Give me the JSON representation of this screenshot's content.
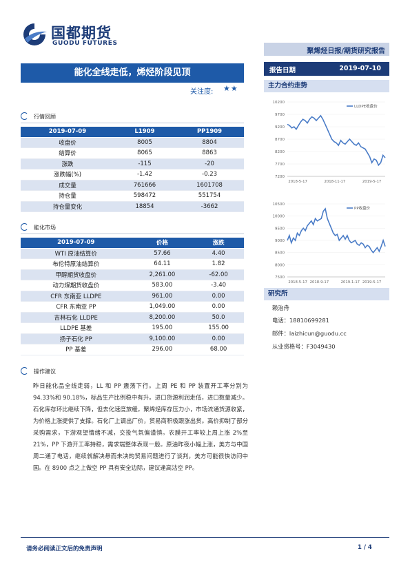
{
  "brand": {
    "name_cn": "国都期货",
    "name_en": "GUODU FUTURES"
  },
  "banner": "聚烯烃日报/期货研究报告",
  "headline": "能化全线走低，烯烃阶段见顶",
  "focus_label": "关注度:",
  "focus_stars": "★★",
  "report_date": {
    "label": "报告日期",
    "value": "2019-07-10"
  },
  "sections": {
    "market_review": "行情回顾",
    "chem_market": "能化市场",
    "advice": "操作建议",
    "main_contract": "主力合约走势",
    "researcher": "研究所"
  },
  "review_table": {
    "headers": [
      "2019-07-09",
      "L1909",
      "PP1909"
    ],
    "rows": [
      [
        "收盘价",
        "8005",
        "8804"
      ],
      [
        "结算价",
        "8065",
        "8863"
      ],
      [
        "涨跌",
        "-115",
        "-20"
      ],
      [
        "涨跌幅(%)",
        "-1.42",
        "-0.23"
      ],
      [
        "成交量",
        "761666",
        "1601708"
      ],
      [
        "持仓量",
        "598472",
        "551754"
      ],
      [
        "持仓量变化",
        "18854",
        "-3662"
      ]
    ]
  },
  "chem_table": {
    "headers": [
      "2019-07-09",
      "价格",
      "涨跌"
    ],
    "rows": [
      [
        "WTI 原油结算价",
        "57.66",
        "4.40"
      ],
      [
        "布伦特原油结算价",
        "64.11",
        "1.82"
      ],
      [
        "甲醇期货收盘价",
        "2,261.00",
        "-62.00"
      ],
      [
        "动力煤期货收盘价",
        "583.00",
        "-3.40"
      ],
      [
        "CFR 东南亚 LLDPE",
        "961.00",
        "0.00"
      ],
      [
        "CFR 东南亚 PP",
        "1,049.00",
        "0.00"
      ],
      [
        "吉林石化 LLDPE",
        "8,200.00",
        "50.0"
      ],
      [
        "LLDPE 基差",
        "195.00",
        "155.00"
      ],
      [
        "扬子石化 PP",
        "9,100.00",
        "0.00"
      ],
      [
        "PP 基差",
        "296.00",
        "68.00"
      ]
    ]
  },
  "advice_text": "昨日能化品全线走弱，LL 和 PP 震荡下行。上周 PE 和 PP 装置开工率分别为 94.33%和 90.18%，标品生产比例稳中有升。进口货源利润走低，进口数量减少。石化库存环比继续下降，但去化速度放缓。聚烯烃库存压力小，市场流通货源收紧，为价格上涨提供了支撑。石化厂上调出厂价，贸易商积极跟涨出货。高价抑制了部分采购需求，下游观望情绪不减，交投气氛偏谨慎。农膜开工率较上周上涨 2%至 21%，PP 下游开工率持稳，需求端整体表现一般。原油昨夜小幅上涨，美方与中国周二通了电话，继续就解决悬而未决的贸易问题进行了谈判，美方可能很快访问中国。在 8900 点之上做空 PP 具有安全边际，建议逢高沽空 PP。",
  "contact": {
    "name": "赖治舟",
    "phone": "电话：18810699281",
    "email": "邮件：laizhicun@guodu.cc",
    "license": "从业资格号：F3049430"
  },
  "footer": {
    "disclaimer": "请务必阅读正文后的免责声明",
    "page": "1 / 4"
  },
  "colors": {
    "brand": "#1d3c78",
    "accent": "#1e5aa8",
    "line": "#4a7cc7"
  },
  "chart_data": [
    {
      "type": "line",
      "series": [
        {
          "name": "LLDPE收盘价",
          "values": [
            9300,
            9250,
            9150,
            9200,
            9100,
            9250,
            9400,
            9500,
            9450,
            9350,
            9500,
            9600,
            9550,
            9450,
            9550,
            9650,
            9500,
            9300,
            9100,
            8900,
            8700,
            8600,
            8550,
            8450,
            8650,
            8550,
            8500,
            8600,
            8700,
            8600,
            8500,
            8450,
            8550,
            8400,
            8350,
            8300,
            8150,
            8000,
            7750,
            7900,
            7850,
            7650,
            7750,
            8050,
            7950
          ]
        }
      ],
      "x_ticks": [
        "2018-5-17",
        "2018-11-17",
        "2019-5-17"
      ],
      "y_ticks": [
        7200,
        7700,
        8200,
        8700,
        9200,
        9700,
        10200
      ],
      "ylim": [
        7200,
        10200
      ]
    },
    {
      "type": "line",
      "series": [
        {
          "name": "PP收盘价",
          "values": [
            9000,
            9200,
            8900,
            9100,
            9000,
            9300,
            9200,
            9400,
            9500,
            9400,
            9600,
            9700,
            9800,
            9650,
            9900,
            9800,
            9850,
            9900,
            10200,
            10300,
            9900,
            9700,
            9500,
            9300,
            9200,
            9250,
            9000,
            9100,
            9200,
            9050,
            9200,
            9000,
            8900,
            8950,
            9000,
            8850,
            8800,
            8900,
            8850,
            8700,
            8800,
            8750,
            8600,
            8500,
            8600,
            8700,
            8550,
            8750,
            9000,
            8750
          ]
        }
      ],
      "x_ticks": [
        "2018-5-17",
        "2018-9-17",
        "2019-1-17",
        "2019-5-17"
      ],
      "y_ticks": [
        7500,
        8000,
        8500,
        9000,
        9500,
        10000,
        10500
      ],
      "ylim": [
        7500,
        10500
      ]
    }
  ]
}
